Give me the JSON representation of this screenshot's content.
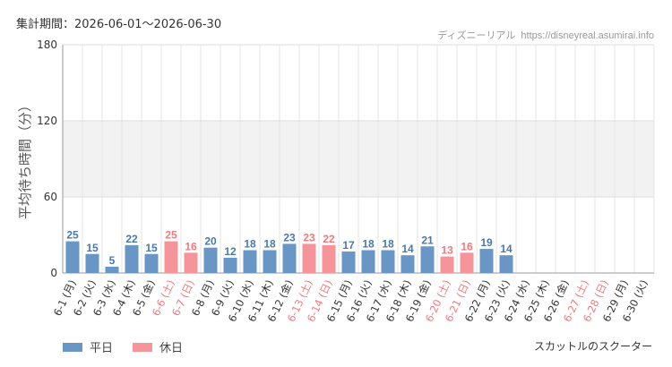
{
  "header": {
    "period": "集計期間：2026-06-01～2026-06-30",
    "credit_label": "ディズニーリアル",
    "credit_site": "https://disneyreal.asumirai.info"
  },
  "footer": {
    "attraction": "スカットルのスクーター"
  },
  "colors": {
    "weekday": "#6a96c6",
    "holiday": "#f5959a",
    "weekday_text": "#4a78a8",
    "holiday_text": "#ef7b81",
    "axis_text": "#333333"
  },
  "legend": [
    {
      "name": "平日",
      "color": "#6a96c6"
    },
    {
      "name": "休日",
      "color": "#f5959a"
    }
  ],
  "chart_data": {
    "type": "bar",
    "ylabel": "平均待ち時間（分）",
    "ylim": [
      0,
      180
    ],
    "yticks": [
      0,
      60,
      120,
      180
    ],
    "grid": true,
    "legend_position": "bottom-left",
    "categories": [
      "6-1 (月)",
      "6-2 (火)",
      "6-3 (水)",
      "6-4 (木)",
      "6-5 (金)",
      "6-6 (土)",
      "6-7 (日)",
      "6-8 (月)",
      "6-9 (火)",
      "6-10 (水)",
      "6-11 (木)",
      "6-12 (金)",
      "6-13 (土)",
      "6-14 (日)",
      "6-15 (月)",
      "6-16 (火)",
      "6-17 (水)",
      "6-18 (木)",
      "6-19 (金)",
      "6-20 (土)",
      "6-21 (日)",
      "6-22 (月)",
      "6-23 (火)",
      "6-24 (水)",
      "6-25 (木)",
      "6-26 (金)",
      "6-27 (土)",
      "6-28 (日)",
      "6-29 (月)",
      "6-30 (火)"
    ],
    "day_type": [
      "平日",
      "平日",
      "平日",
      "平日",
      "平日",
      "休日",
      "休日",
      "平日",
      "平日",
      "平日",
      "平日",
      "平日",
      "休日",
      "休日",
      "平日",
      "平日",
      "平日",
      "平日",
      "平日",
      "休日",
      "休日",
      "平日",
      "平日",
      "平日",
      "平日",
      "平日",
      "休日",
      "休日",
      "平日",
      "平日"
    ],
    "values": [
      25,
      15,
      5,
      22,
      15,
      25,
      16,
      20,
      12,
      18,
      18,
      23,
      23,
      22,
      17,
      18,
      18,
      14,
      21,
      13,
      16,
      19,
      14,
      null,
      null,
      null,
      null,
      null,
      null,
      null
    ]
  }
}
